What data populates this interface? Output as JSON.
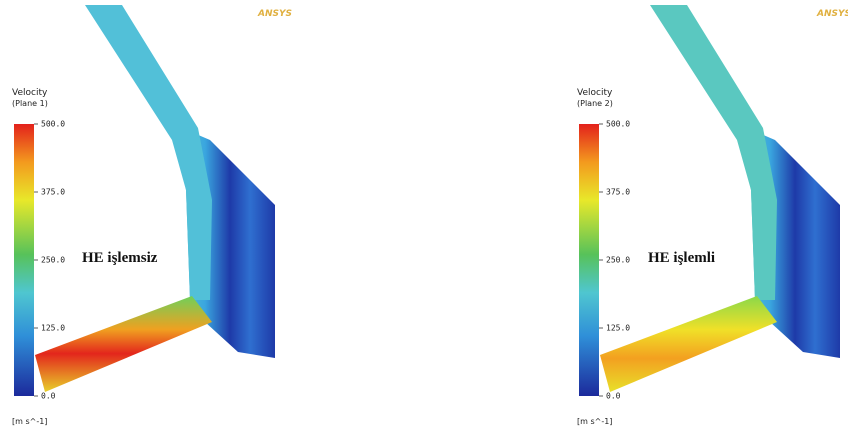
{
  "panels": [
    {
      "logo": "ANSYS",
      "title": "Velocity",
      "subtitle": "(Plane 1)",
      "unit": "[m s^-1]",
      "label": "HE işlemsiz",
      "range": [
        0,
        500
      ],
      "ticks": [
        {
          "value": 500,
          "label": "500.0"
        },
        {
          "value": 375,
          "label": "375.0"
        },
        {
          "value": 250,
          "label": "250.0"
        },
        {
          "value": 125,
          "label": "125.0"
        },
        {
          "value": 0,
          "label": "0.0"
        }
      ]
    },
    {
      "logo": "ANSYS",
      "title": "Velocity",
      "subtitle": "(Plane 2)",
      "unit": "[m s^-1]",
      "label": "HE işlemli",
      "range": [
        0,
        500
      ],
      "ticks": [
        {
          "value": 500,
          "label": "500.0"
        },
        {
          "value": 375,
          "label": "375.0"
        },
        {
          "value": 250,
          "label": "250.0"
        },
        {
          "value": 125,
          "label": "125.0"
        },
        {
          "value": 0,
          "label": "0.0"
        }
      ]
    }
  ]
}
